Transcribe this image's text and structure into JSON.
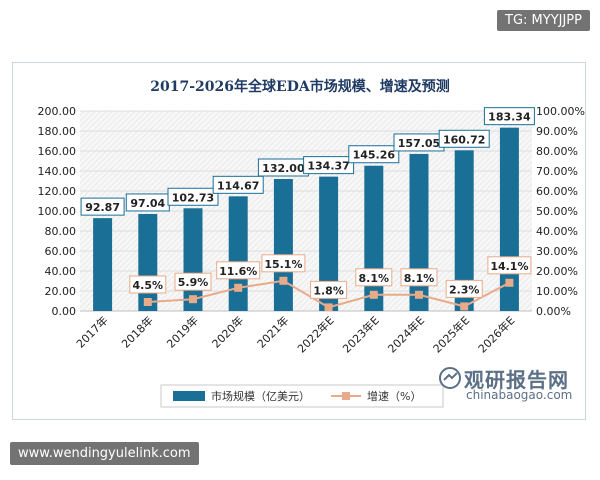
{
  "overlays": {
    "tag": "TG: MYYJJPP",
    "url": "www.wendingyulelink.com"
  },
  "watermark": {
    "cn": "观研报告网",
    "en": "chinabaogao.com"
  },
  "colors": {
    "bar": "#1a6f96",
    "line": "#e8ab8a",
    "marker": "#e8ab8a",
    "label_border_bar": "#1a6f96",
    "label_border_line": "#e8ab8a",
    "title": "#1f3a63"
  },
  "chart_data": {
    "type": "bar",
    "title": "2017-2026年全球EDA市场规模、增速及预测",
    "categories": [
      "2017年",
      "2018年",
      "2019年",
      "2020年",
      "2021年",
      "2022年E",
      "2023年E",
      "2024年E",
      "2025年E",
      "2026年E"
    ],
    "series": [
      {
        "name": "市场规模（亿美元）",
        "type": "bar",
        "axis": "left",
        "values": [
          92.87,
          97.04,
          102.73,
          114.67,
          132.0,
          134.37,
          145.26,
          157.05,
          160.72,
          183.34
        ],
        "labels": [
          "92.87",
          "97.04",
          "102.73",
          "114.67",
          "132.00",
          "134.37",
          "145.26",
          "157.05",
          "160.72",
          "183.34"
        ]
      },
      {
        "name": "增速（%）",
        "type": "line",
        "axis": "right",
        "values": [
          null,
          4.5,
          5.9,
          11.6,
          15.1,
          1.8,
          8.1,
          8.1,
          2.3,
          14.1
        ],
        "labels": [
          "",
          "4.5%",
          "5.9%",
          "11.6%",
          "15.1%",
          "1.8%",
          "8.1%",
          "8.1%",
          "2.3%",
          "14.1%"
        ]
      }
    ],
    "y_left": {
      "min": 0,
      "max": 200,
      "step": 20,
      "ticks": [
        "0.00",
        "20.00",
        "40.00",
        "60.00",
        "80.00",
        "100.00",
        "120.00",
        "140.00",
        "160.00",
        "180.00",
        "200.00"
      ]
    },
    "y_right": {
      "min": 0,
      "max": 100,
      "step": 10,
      "ticks": [
        "0.00%",
        "10.00%",
        "20.00%",
        "30.00%",
        "40.00%",
        "50.00%",
        "60.00%",
        "70.00%",
        "80.00%",
        "90.00%",
        "100.00%"
      ]
    },
    "legend": {
      "position": "bottom",
      "items": [
        "市场规模（亿美元）",
        "增速（%）"
      ]
    },
    "grid": true
  }
}
